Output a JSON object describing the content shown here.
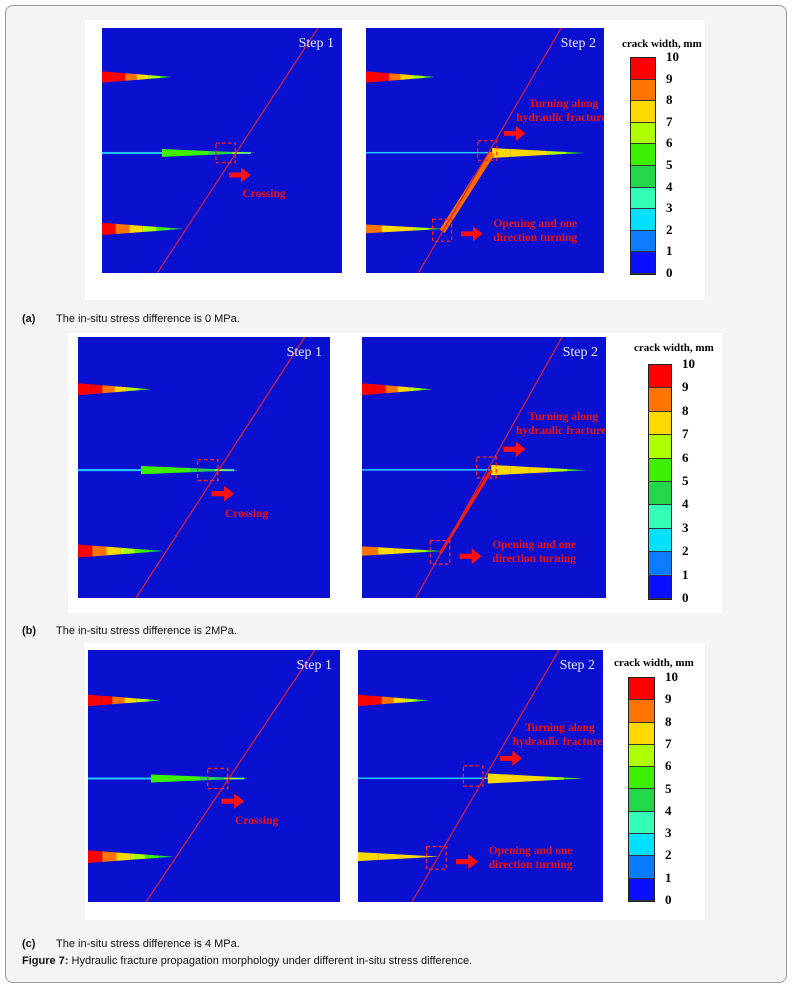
{
  "colorbar": {
    "title": "crack width, mm",
    "ticks": [
      "10",
      "9",
      "8",
      "7",
      "6",
      "5",
      "4",
      "3",
      "2",
      "1",
      "0"
    ],
    "colors": [
      "#ff0000",
      "#ff7300",
      "#ffd800",
      "#b0ff00",
      "#3cf000",
      "#22d84a",
      "#33ffb8",
      "#00e0ff",
      "#0a7cff",
      "#0a10ff"
    ]
  },
  "plot_bg": "#0a10d0",
  "panels": [
    {
      "letter": "(a)",
      "caption": "The in-situ stress difference is 0 MPa.",
      "step1": "Step 1",
      "step2": "Step 2",
      "crossing": "Crossing",
      "turning": "Turning along hydraulic fractures",
      "opening": "Opening and one direction turning"
    },
    {
      "letter": "(b)",
      "caption": "The in-situ stress difference is 2MPa.",
      "step1": "Step 1",
      "step2": "Step 2",
      "crossing": "Crossing",
      "turning": "Turning along hydraulic fractures",
      "opening": "Opening and one direction turning"
    },
    {
      "letter": "(c)",
      "caption": "The in-situ stress difference is 4 MPa.",
      "step1": "Step 1",
      "step2": "Step 2",
      "crossing": "Crossing",
      "turning": "Turning along hydraulic fractures",
      "opening": "Opening and one direction turning"
    }
  ],
  "figure": {
    "label": "Figure 7:",
    "text": " Hydraulic fracture propagation morphology under different in-situ stress difference."
  }
}
